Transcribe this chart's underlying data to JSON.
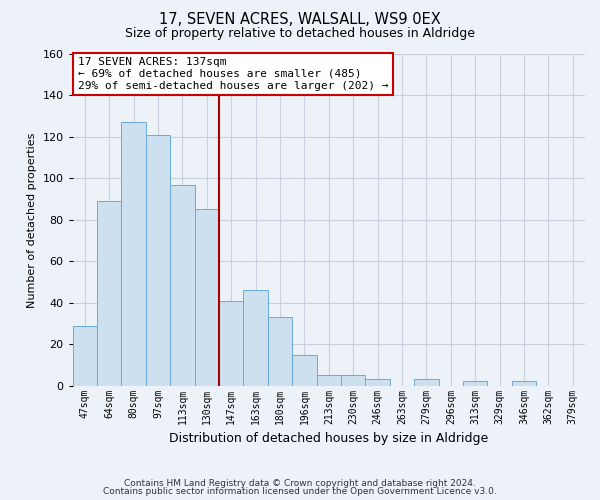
{
  "title": "17, SEVEN ACRES, WALSALL, WS9 0EX",
  "subtitle": "Size of property relative to detached houses in Aldridge",
  "xlabel": "Distribution of detached houses by size in Aldridge",
  "ylabel": "Number of detached properties",
  "bin_labels": [
    "47sqm",
    "64sqm",
    "80sqm",
    "97sqm",
    "113sqm",
    "130sqm",
    "147sqm",
    "163sqm",
    "180sqm",
    "196sqm",
    "213sqm",
    "230sqm",
    "246sqm",
    "263sqm",
    "279sqm",
    "296sqm",
    "313sqm",
    "329sqm",
    "346sqm",
    "362sqm",
    "379sqm"
  ],
  "bar_heights": [
    29,
    89,
    127,
    121,
    97,
    85,
    41,
    46,
    33,
    15,
    5,
    5,
    3,
    0,
    3,
    0,
    2,
    0,
    2,
    0,
    0
  ],
  "bar_color": "#cce0f0",
  "bar_edgecolor": "#6aaad4",
  "ylim": [
    0,
    160
  ],
  "yticks": [
    0,
    20,
    40,
    60,
    80,
    100,
    120,
    140,
    160
  ],
  "vline_x": 6.0,
  "vline_color": "#aa0000",
  "annotation_title": "17 SEVEN ACRES: 137sqm",
  "annotation_line1": "← 69% of detached houses are smaller (485)",
  "annotation_line2": "29% of semi-detached houses are larger (202) →",
  "footer1": "Contains HM Land Registry data © Crown copyright and database right 2024.",
  "footer2": "Contains public sector information licensed under the Open Government Licence v3.0.",
  "background_color": "#edf2f9",
  "plot_bg_color": "#edf2f9",
  "grid_color": "#c8d0de"
}
